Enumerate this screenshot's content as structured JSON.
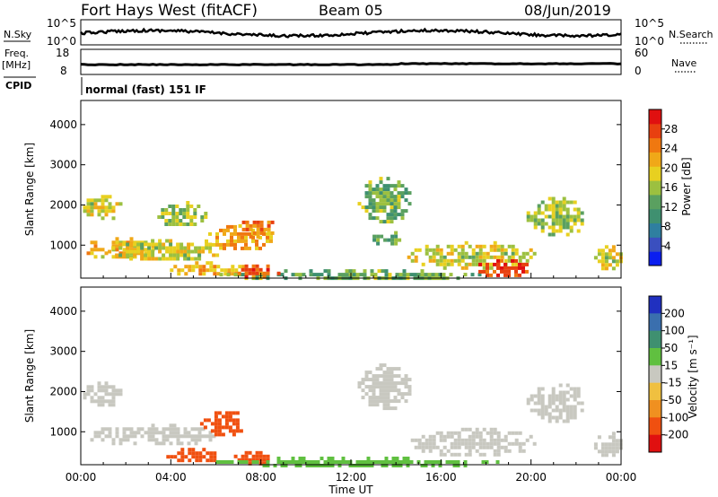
{
  "header": {
    "title": "Fort Hays West (fitACF)",
    "beam": "Beam 05",
    "date": "08/Jun/2019"
  },
  "labels": {
    "nsky": "N.Sky",
    "nsearch": "N.Search",
    "freq": "Freq.",
    "freq_unit": "[MHz]",
    "nave": "Nave",
    "cpid": "CPID",
    "cpid_value": "normal (fast) 151 IF"
  },
  "noise_axis": {
    "left_ticks": [
      "10^5",
      "10^0"
    ],
    "right_ticks": [
      "10^5",
      "10^0"
    ]
  },
  "freq_axis": {
    "left_ticks": [
      "18",
      "8"
    ],
    "right_ticks": [
      "60",
      "0"
    ]
  },
  "chart_data": [
    {
      "type": "heatmap",
      "name": "power",
      "ylabel": "Slant Range [km]",
      "xlabel": "Time UT",
      "x_ticks": [
        "00:00",
        "04:00",
        "08:00",
        "12:00",
        "16:00",
        "20:00",
        "00:00"
      ],
      "y_ticks": [
        1000,
        2000,
        3000,
        4000
      ],
      "xlim_hours": [
        0,
        24
      ],
      "ylim": [
        180,
        4600
      ],
      "colorbar": {
        "label": "Power [dB]",
        "ticks": [
          4,
          8,
          12,
          16,
          20,
          24,
          28
        ],
        "range": [
          0,
          32
        ],
        "colors": [
          "#0b1ef0",
          "#3a4fbf",
          "#2f7fa0",
          "#3f9070",
          "#5aa060",
          "#9cc040",
          "#e8d020",
          "#f0a818",
          "#f07810",
          "#e84010",
          "#e01010"
        ]
      },
      "echo_regions": [
        {
          "t0": 0.1,
          "t1": 1.8,
          "r0": 1700,
          "r1": 2250,
          "value": 18
        },
        {
          "t0": 0.1,
          "t1": 3.2,
          "r0": 700,
          "r1": 1200,
          "value": 20
        },
        {
          "t0": 1.2,
          "t1": 6.2,
          "r0": 650,
          "r1": 1150,
          "value": 18
        },
        {
          "t0": 3.4,
          "t1": 5.5,
          "r0": 1500,
          "r1": 2100,
          "value": 16
        },
        {
          "t0": 5.5,
          "t1": 8.5,
          "r0": 900,
          "r1": 1500,
          "value": 22
        },
        {
          "t0": 7.0,
          "t1": 8.6,
          "r0": 1250,
          "r1": 1700,
          "value": 24
        },
        {
          "t0": 3.8,
          "t1": 7.5,
          "r0": 300,
          "r1": 600,
          "value": 22
        },
        {
          "t0": 6.0,
          "t1": 18.0,
          "r0": 180,
          "r1": 400,
          "value": 14
        },
        {
          "t0": 6.8,
          "t1": 8.8,
          "r0": 250,
          "r1": 520,
          "value": 26
        },
        {
          "t0": 12.3,
          "t1": 14.6,
          "r0": 1600,
          "r1": 2700,
          "value": 14
        },
        {
          "t0": 14.5,
          "t1": 20.2,
          "r0": 450,
          "r1": 1100,
          "value": 18
        },
        {
          "t0": 17.5,
          "t1": 20.0,
          "r0": 250,
          "r1": 650,
          "value": 28
        },
        {
          "t0": 19.8,
          "t1": 22.5,
          "r0": 1300,
          "r1": 2200,
          "value": 16
        },
        {
          "t0": 22.8,
          "t1": 24.0,
          "r0": 400,
          "r1": 1000,
          "value": 18
        },
        {
          "t0": 12.8,
          "t1": 14.3,
          "r0": 1050,
          "r1": 1350,
          "value": 12
        }
      ]
    },
    {
      "type": "heatmap",
      "name": "velocity",
      "ylabel": "Slant Range [km]",
      "xlabel": "Time UT",
      "x_ticks": [
        "00:00",
        "04:00",
        "08:00",
        "12:00",
        "16:00",
        "20:00",
        "00:00"
      ],
      "y_ticks": [
        1000,
        2000,
        3000,
        4000
      ],
      "xlim_hours": [
        0,
        24
      ],
      "ylim": [
        180,
        4600
      ],
      "colorbar": {
        "label": "Velocity [m s⁻¹]",
        "ticks": [
          "200",
          "100",
          "50",
          "15",
          "-15",
          "-50",
          "-100",
          "-200"
        ],
        "colors": [
          "#2030c0",
          "#3a6fae",
          "#3f9070",
          "#60c040",
          "#c8c8c0",
          "#f0c040",
          "#f09020",
          "#f05010",
          "#e01010"
        ]
      },
      "echo_regions": [
        {
          "t0": 0.1,
          "t1": 1.8,
          "r0": 1700,
          "r1": 2250,
          "value": 0
        },
        {
          "t0": 0.1,
          "t1": 6.0,
          "r0": 700,
          "r1": 1200,
          "value": 0
        },
        {
          "t0": 5.3,
          "t1": 7.2,
          "r0": 900,
          "r1": 1600,
          "value": -120
        },
        {
          "t0": 3.8,
          "t1": 6.2,
          "r0": 300,
          "r1": 600,
          "value": -150
        },
        {
          "t0": 6.8,
          "t1": 8.5,
          "r0": 250,
          "r1": 520,
          "value": -130
        },
        {
          "t0": 6.0,
          "t1": 18.5,
          "r0": 180,
          "r1": 380,
          "value": 25
        },
        {
          "t0": 12.3,
          "t1": 14.6,
          "r0": 1600,
          "r1": 2700,
          "value": 0
        },
        {
          "t0": 14.5,
          "t1": 20.2,
          "r0": 450,
          "r1": 1100,
          "value": 0
        },
        {
          "t0": 19.8,
          "t1": 22.5,
          "r0": 1300,
          "r1": 2200,
          "value": 0
        },
        {
          "t0": 22.8,
          "t1": 24.0,
          "r0": 400,
          "r1": 1000,
          "value": 0
        }
      ]
    }
  ]
}
